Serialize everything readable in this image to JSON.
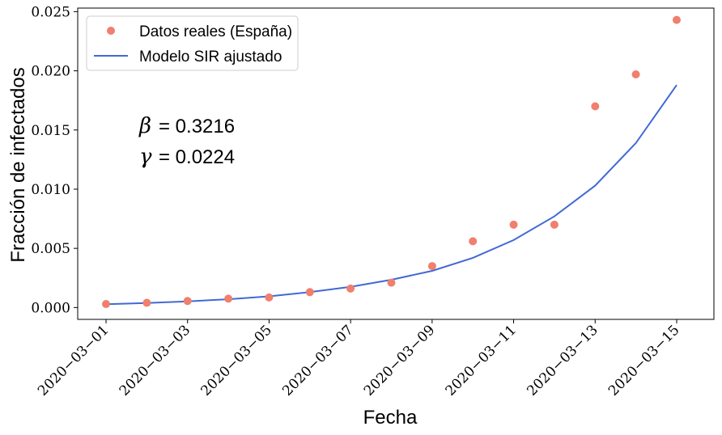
{
  "chart_data": {
    "type": "line",
    "xlabel": "Fecha",
    "ylabel": "Fracción de infectados",
    "ylim": [
      -0.001,
      0.0253
    ],
    "yticks": [
      "0.000",
      "0.005",
      "0.010",
      "0.015",
      "0.020",
      "0.025"
    ],
    "ytick_values": [
      0,
      0.005,
      0.01,
      0.015,
      0.02,
      0.025
    ],
    "x": [
      "2020-03-01",
      "2020-03-02",
      "2020-03-03",
      "2020-03-04",
      "2020-03-05",
      "2020-03-06",
      "2020-03-07",
      "2020-03-08",
      "2020-03-09",
      "2020-03-10",
      "2020-03-11",
      "2020-03-12",
      "2020-03-13",
      "2020-03-14",
      "2020-03-15"
    ],
    "xticks": [
      "2020−03−01",
      "2020−03−03",
      "2020−03−05",
      "2020−03−07",
      "2020−03−09",
      "2020−03−11",
      "2020−03−13",
      "2020−03−15"
    ],
    "xtick_dates": [
      "2020-03-01",
      "2020-03-03",
      "2020-03-05",
      "2020-03-07",
      "2020-03-09",
      "2020-03-11",
      "2020-03-13",
      "2020-03-15"
    ],
    "grid": false,
    "legend_position": "upper-left",
    "series": [
      {
        "name": "Datos reales (España)",
        "kind": "scatter",
        "color": "#f07f6e",
        "values": [
          0.0003,
          0.0004,
          0.00055,
          0.00075,
          0.00085,
          0.0013,
          0.0016,
          0.0021,
          0.0035,
          0.0056,
          0.007,
          0.007,
          0.017,
          0.0197,
          0.0243
        ]
      },
      {
        "name": "Modelo SIR ajustado",
        "kind": "line",
        "color": "#4169d6",
        "values": [
          0.00028,
          0.00038,
          0.00052,
          0.0007,
          0.00095,
          0.0013,
          0.00175,
          0.00235,
          0.0031,
          0.0042,
          0.0057,
          0.0077,
          0.0103,
          0.0139,
          0.0188
        ]
      }
    ],
    "annotations": [
      {
        "symbol": "β",
        "text": "= 0.3216"
      },
      {
        "symbol": "γ",
        "text": "= 0.0224"
      }
    ]
  }
}
